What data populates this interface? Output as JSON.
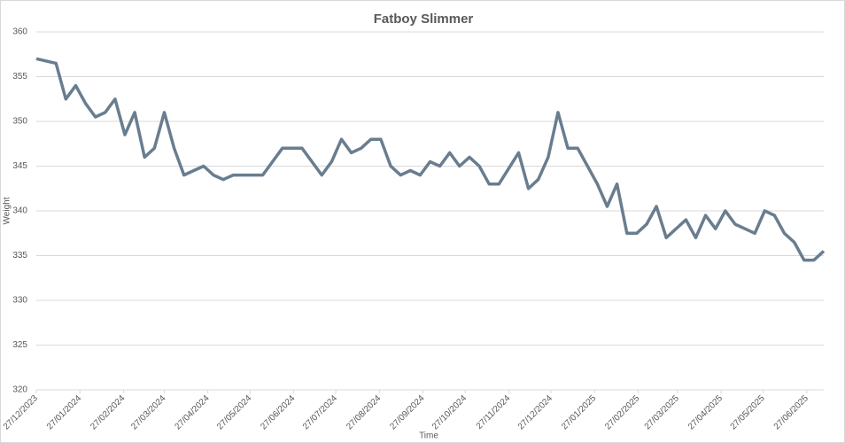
{
  "chart_data": {
    "type": "line",
    "title": "Fatboy Slimmer",
    "x_label": "Time",
    "y_label": "Weight",
    "color": "#697d8f",
    "grid": true,
    "x": [
      "27/12/2023",
      "10/01/2024",
      "17/01/2024",
      "24/01/2024",
      "31/01/2024",
      "07/02/2024",
      "14/02/2024",
      "21/02/2024",
      "28/02/2024",
      "06/03/2024",
      "13/03/2024",
      "20/03/2024",
      "27/03/2024",
      "03/04/2024",
      "10/04/2024",
      "17/04/2024",
      "24/04/2024",
      "01/05/2024",
      "08/05/2024",
      "15/05/2024",
      "22/05/2024",
      "05/06/2024",
      "19/06/2024",
      "03/07/2024",
      "17/07/2024",
      "24/07/2024",
      "31/07/2024",
      "07/08/2024",
      "14/08/2024",
      "21/08/2024",
      "28/08/2024",
      "04/09/2024",
      "11/09/2024",
      "18/09/2024",
      "25/09/2024",
      "02/10/2024",
      "09/10/2024",
      "16/10/2024",
      "23/10/2024",
      "30/10/2024",
      "06/11/2024",
      "13/11/2024",
      "20/11/2024",
      "04/12/2024",
      "11/12/2024",
      "18/12/2024",
      "25/12/2024",
      "01/01/2025",
      "08/01/2025",
      "15/01/2025",
      "22/01/2025",
      "29/01/2025",
      "05/02/2025",
      "12/02/2025",
      "19/02/2025",
      "26/02/2025",
      "05/03/2025",
      "12/03/2025",
      "19/03/2025",
      "26/03/2025",
      "02/04/2025",
      "09/04/2025",
      "16/04/2025",
      "23/04/2025",
      "30/04/2025",
      "07/05/2025",
      "14/05/2025",
      "21/05/2025",
      "28/05/2025",
      "04/06/2025",
      "11/06/2025",
      "18/06/2025",
      "25/06/2025",
      "02/07/2025",
      "09/07/2025"
    ],
    "values": [
      357,
      356.5,
      352.5,
      354,
      352,
      350.5,
      351,
      352.5,
      348.5,
      351,
      346,
      347,
      351,
      347,
      344,
      344.5,
      345,
      344,
      343.5,
      344,
      344,
      344,
      347,
      347,
      344,
      345.5,
      348,
      346.5,
      347,
      348,
      348,
      345,
      344,
      344.5,
      344,
      345.5,
      345,
      346.5,
      345,
      346,
      345,
      343,
      343,
      346.5,
      342.5,
      343.5,
      346,
      351,
      347,
      347,
      345,
      343,
      340.5,
      343,
      337.5,
      337.5,
      338.5,
      340.5,
      337,
      338,
      339,
      337,
      339.5,
      338,
      340,
      338.5,
      338,
      337.5,
      340,
      339.5,
      337.5,
      336.5,
      334.5,
      334.5,
      335.5
    ],
    "xlim": [
      "27/12/2023",
      "09/07/2025"
    ],
    "xticks": [
      "27/12/2023",
      "27/01/2024",
      "27/02/2024",
      "27/03/2024",
      "27/04/2024",
      "27/05/2024",
      "27/06/2024",
      "27/07/2024",
      "27/08/2024",
      "27/09/2024",
      "27/10/2024",
      "27/11/2024",
      "27/12/2024",
      "27/01/2025",
      "27/02/2025",
      "27/03/2025",
      "27/04/2025",
      "27/05/2025",
      "27/06/2025"
    ],
    "ylim": [
      320,
      360
    ],
    "yticks": [
      320,
      325,
      330,
      335,
      340,
      345,
      350,
      355,
      360
    ]
  }
}
